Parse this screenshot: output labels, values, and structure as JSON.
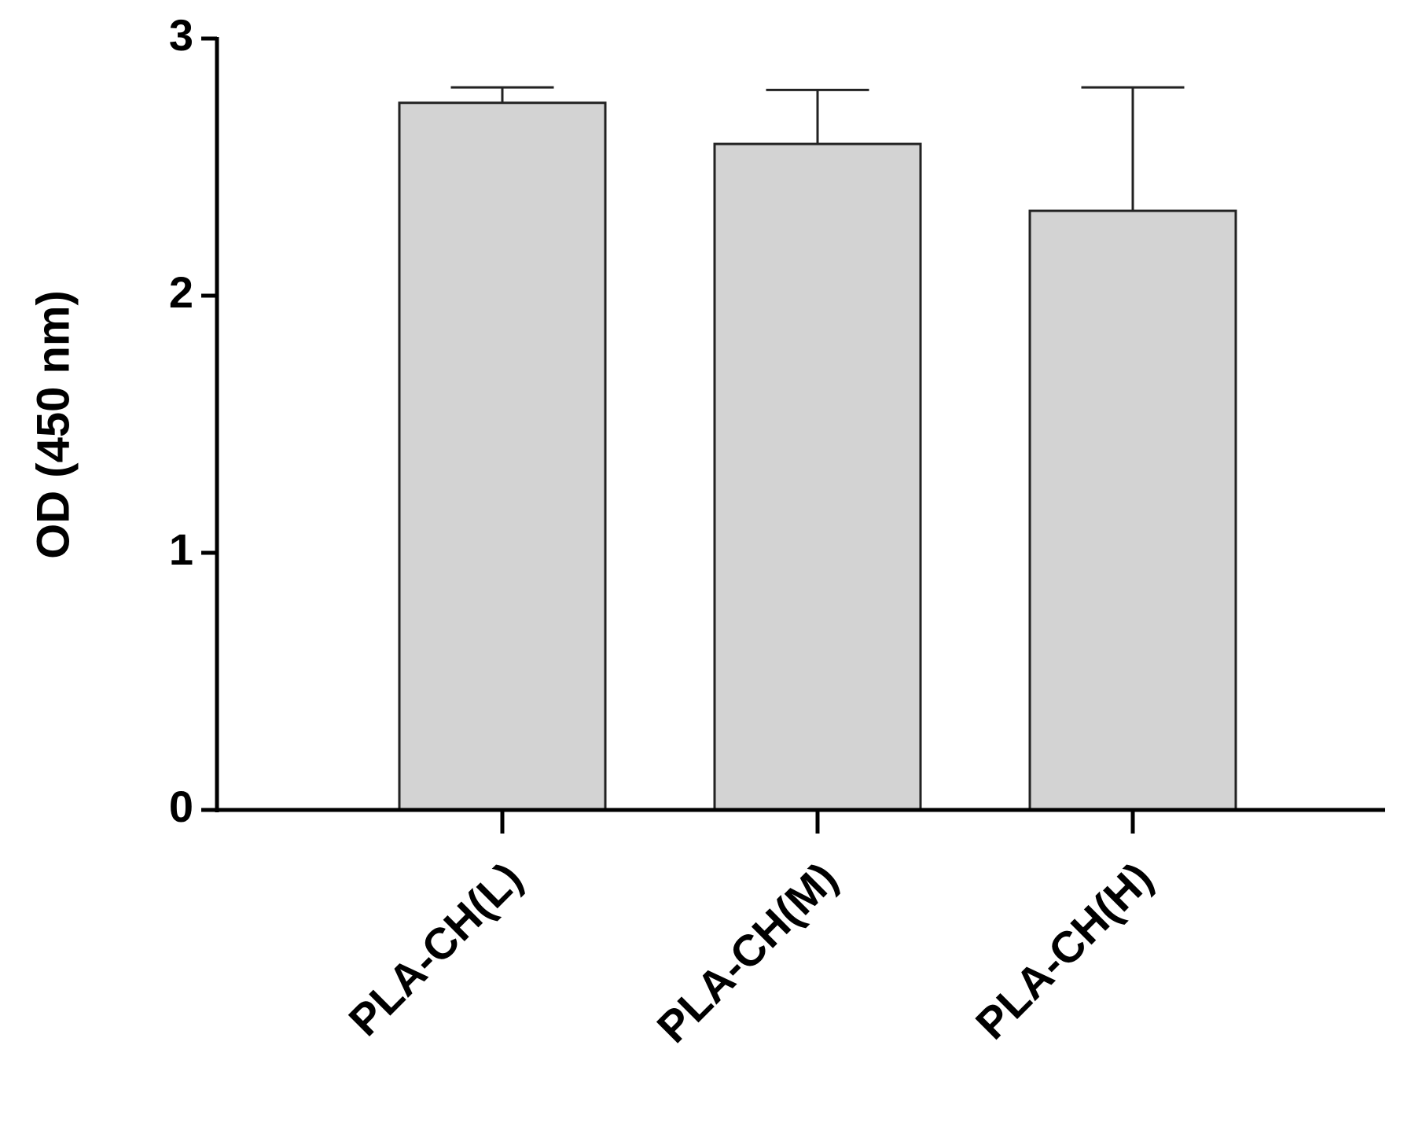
{
  "chart_data": {
    "type": "bar",
    "y_label": "OD (450 nm)",
    "categories": [
      "PLA-CH(L)",
      "PLA-CH(M)",
      "PLA-CH(H)"
    ],
    "values": [
      2.75,
      2.59,
      2.33
    ],
    "errors": [
      0.06,
      0.21,
      0.48
    ],
    "color": "#d3d3d3",
    "ylim": [
      0,
      3
    ],
    "yticks": [
      0,
      1,
      2,
      3
    ]
  }
}
